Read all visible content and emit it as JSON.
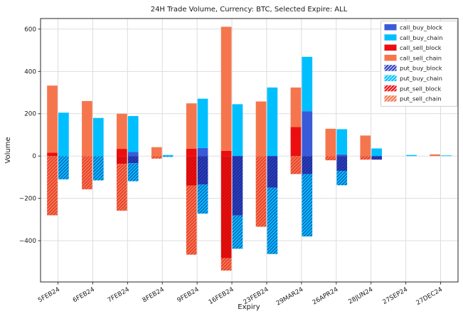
{
  "figure": {
    "background": "#ffffff",
    "frame_color": "#262626",
    "grid_color": "#d9d9d9"
  },
  "chart_data": {
    "type": "bar",
    "stacked": true,
    "title": "24H Trade Volume, Currency: BTC, Selected Expire: ALL",
    "xlabel": "Expiry",
    "ylabel": "Volume",
    "ylim": [
      -595,
      650
    ],
    "yticks": [
      -400,
      -200,
      0,
      200,
      400,
      600
    ],
    "grid": true,
    "legend_position": "upper right",
    "categories": [
      "5FEB24",
      "6FEB24",
      "7FEB24",
      "8FEB24",
      "9FEB24",
      "16FEB24",
      "23FEB24",
      "29MAR24",
      "26APR24",
      "28JUN24",
      "27SEP24",
      "27DEC24"
    ],
    "groups": [
      "sell",
      "buy"
    ],
    "series": [
      {
        "name": "call_buy_block",
        "group": "buy",
        "color": "#3a5bd9",
        "hatch": false,
        "values": [
          0,
          0,
          19,
          0,
          38,
          0,
          0,
          212,
          8,
          0,
          0,
          0
        ]
      },
      {
        "name": "call_buy_chain",
        "group": "buy",
        "color": "#00bfff",
        "hatch": false,
        "values": [
          205,
          180,
          170,
          5,
          233,
          245,
          324,
          257,
          119,
          36,
          5,
          3
        ]
      },
      {
        "name": "call_sell_block",
        "group": "sell",
        "color": "#ec0e0e",
        "hatch": false,
        "values": [
          16,
          0,
          34,
          0,
          35,
          25,
          0,
          137,
          0,
          0,
          0,
          0
        ]
      },
      {
        "name": "call_sell_chain",
        "group": "sell",
        "color": "#f5764d",
        "hatch": false,
        "values": [
          317,
          260,
          166,
          42,
          214,
          586,
          258,
          187,
          129,
          97,
          0,
          8
        ]
      },
      {
        "name": "put_buy_block",
        "group": "buy",
        "color": "#2b3ec0",
        "hatch": true,
        "hatch_color": "#15247e",
        "values": [
          0,
          0,
          -34,
          0,
          -135,
          -281,
          -149,
          -85,
          -70,
          -17,
          0,
          0
        ]
      },
      {
        "name": "put_buy_chain",
        "group": "buy",
        "color": "#00bfff",
        "hatch": true,
        "hatch_color": "#1b3a9e",
        "values": [
          -110,
          -115,
          -85,
          -4,
          -137,
          -157,
          -314,
          -295,
          -68,
          0,
          0,
          0
        ]
      },
      {
        "name": "put_sell_block",
        "group": "sell",
        "color": "#ec0e0e",
        "hatch": true,
        "hatch_color": "#c00808",
        "values": [
          0,
          0,
          -37,
          0,
          -140,
          -483,
          0,
          0,
          0,
          0,
          0,
          0
        ]
      },
      {
        "name": "put_sell_chain",
        "group": "sell",
        "color": "#f5764d",
        "hatch": true,
        "hatch_color": "#e02020",
        "values": [
          -280,
          -157,
          -221,
          -12,
          -326,
          -58,
          -334,
          -85,
          -20,
          -17,
          0,
          0
        ]
      }
    ]
  }
}
